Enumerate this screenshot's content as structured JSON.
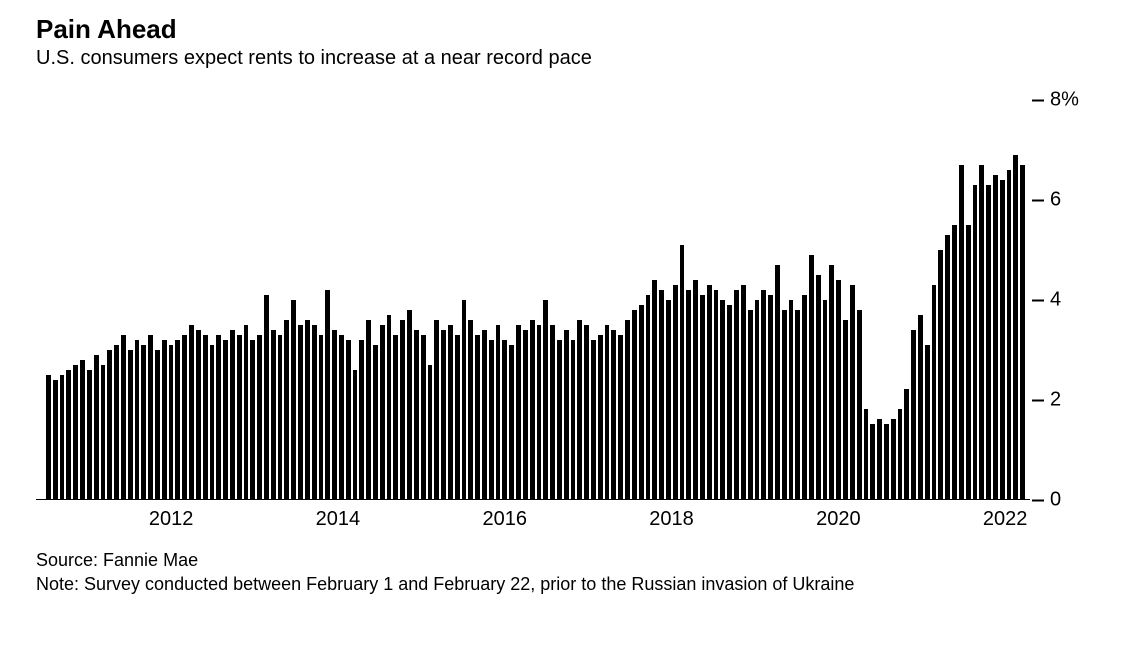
{
  "header": {
    "title": "Pain Ahead",
    "subtitle": "U.S. consumers expect rents to increase at a near record pace"
  },
  "chart": {
    "type": "bar",
    "bar_color": "#000000",
    "background_color": "#ffffff",
    "axis_color": "#000000",
    "ylim": [
      0,
      8
    ],
    "y_ticks": [
      {
        "value": 0,
        "label": "0"
      },
      {
        "value": 2,
        "label": "2"
      },
      {
        "value": 4,
        "label": "4"
      },
      {
        "value": 6,
        "label": "6"
      },
      {
        "value": 8,
        "label": "8%"
      }
    ],
    "x_start_year": 2010.5,
    "x_end_year": 2022.25,
    "x_ticks": [
      {
        "value": 2012,
        "label": "2012"
      },
      {
        "value": 2014,
        "label": "2014"
      },
      {
        "value": 2016,
        "label": "2016"
      },
      {
        "value": 2018,
        "label": "2018"
      },
      {
        "value": 2020,
        "label": "2020"
      },
      {
        "value": 2022,
        "label": "2022"
      }
    ],
    "values": [
      2.5,
      2.4,
      2.5,
      2.6,
      2.7,
      2.8,
      2.6,
      2.9,
      2.7,
      3.0,
      3.1,
      3.3,
      3.0,
      3.2,
      3.1,
      3.3,
      3.0,
      3.2,
      3.1,
      3.2,
      3.3,
      3.5,
      3.4,
      3.3,
      3.1,
      3.3,
      3.2,
      3.4,
      3.3,
      3.5,
      3.2,
      3.3,
      4.1,
      3.4,
      3.3,
      3.6,
      4.0,
      3.5,
      3.6,
      3.5,
      3.3,
      4.2,
      3.4,
      3.3,
      3.2,
      2.6,
      3.2,
      3.6,
      3.1,
      3.5,
      3.7,
      3.3,
      3.6,
      3.8,
      3.4,
      3.3,
      2.7,
      3.6,
      3.4,
      3.5,
      3.3,
      4.0,
      3.6,
      3.3,
      3.4,
      3.2,
      3.5,
      3.2,
      3.1,
      3.5,
      3.4,
      3.6,
      3.5,
      4.0,
      3.5,
      3.2,
      3.4,
      3.2,
      3.6,
      3.5,
      3.2,
      3.3,
      3.5,
      3.4,
      3.3,
      3.6,
      3.8,
      3.9,
      4.1,
      4.4,
      4.2,
      4.0,
      4.3,
      5.1,
      4.2,
      4.4,
      4.1,
      4.3,
      4.2,
      4.0,
      3.9,
      4.2,
      4.3,
      3.8,
      4.0,
      4.2,
      4.1,
      4.7,
      3.8,
      4.0,
      3.8,
      4.1,
      4.9,
      4.5,
      4.0,
      4.7,
      4.4,
      3.6,
      4.3,
      3.8,
      1.8,
      1.5,
      1.6,
      1.5,
      1.6,
      1.8,
      2.2,
      3.4,
      3.7,
      3.1,
      4.3,
      5.0,
      5.3,
      5.5,
      6.7,
      5.5,
      6.3,
      6.7,
      6.3,
      6.5,
      6.4,
      6.6,
      6.9,
      6.7
    ]
  },
  "footnotes": {
    "source": "Source: Fannie Mae",
    "note": "Note: Survey conducted between February 1 and February 22, prior to the Russian invasion of Ukraine"
  },
  "typography": {
    "title_fontsize": 26,
    "title_weight": 700,
    "subtitle_fontsize": 20,
    "axis_label_fontsize": 20,
    "footnote_fontsize": 18,
    "font_family": "Helvetica, Arial, sans-serif"
  }
}
